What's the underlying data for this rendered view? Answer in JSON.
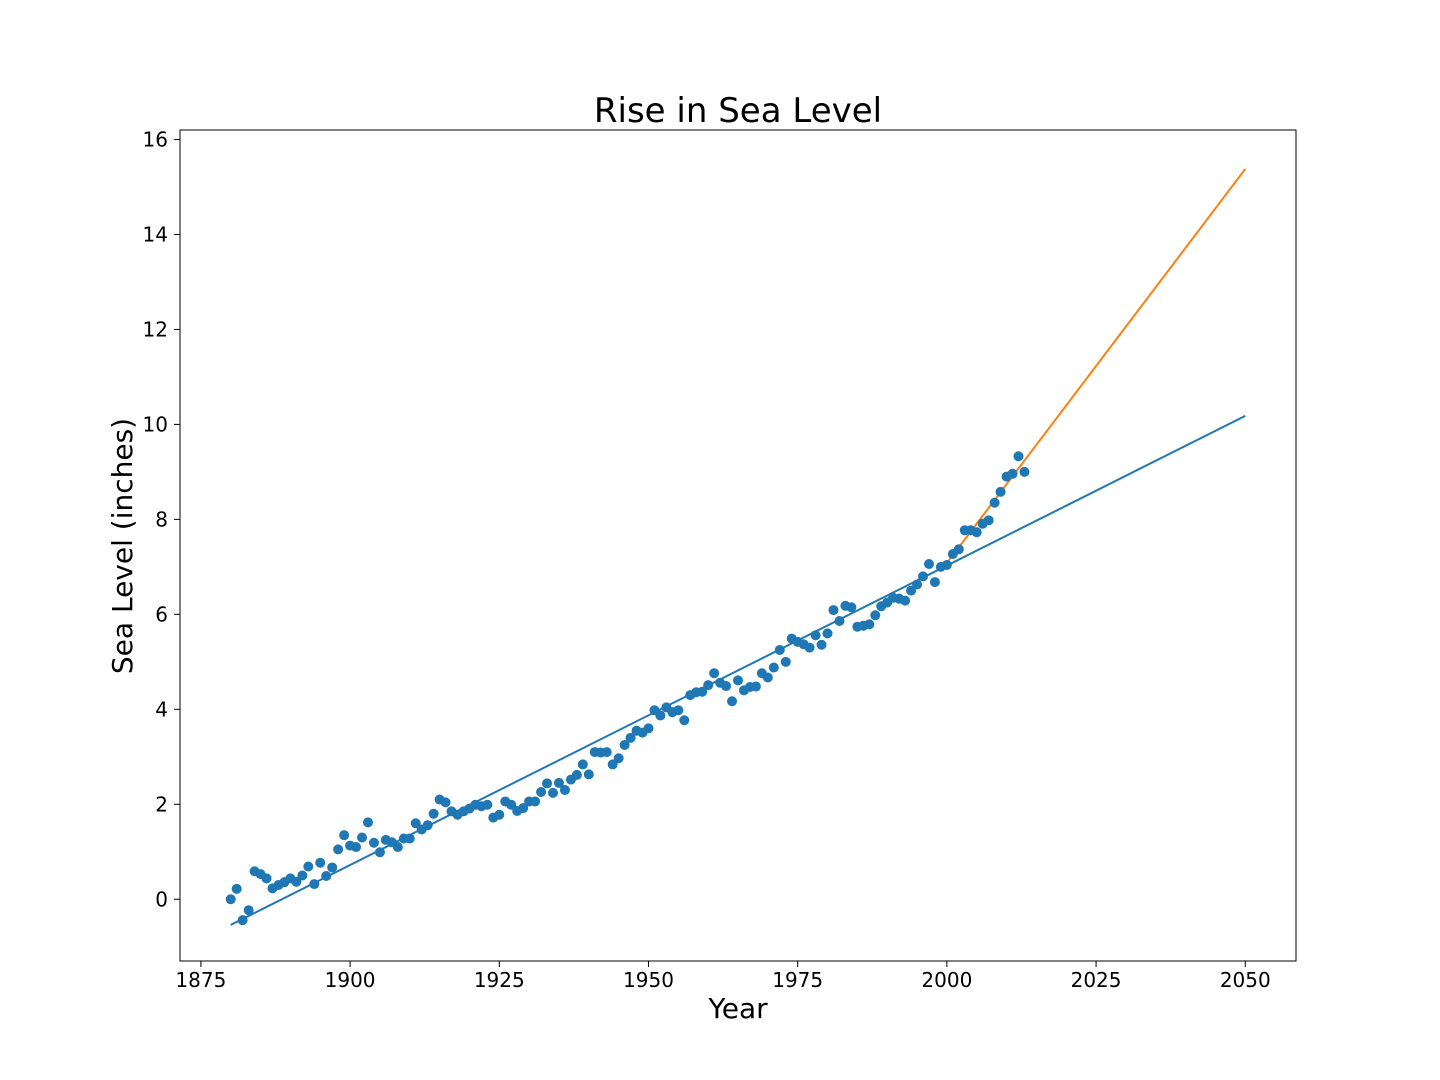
{
  "chart_data": {
    "type": "scatter",
    "title": "Rise in Sea Level",
    "xlabel": "Year",
    "ylabel": "Sea Level (inches)",
    "xlim": [
      1871.5,
      2058.5
    ],
    "ylim": [
      -1.3,
      16.2
    ],
    "xticks": [
      1875,
      1900,
      1925,
      1950,
      1975,
      2000,
      2025,
      2050
    ],
    "yticks": [
      0,
      2,
      4,
      6,
      8,
      10,
      12,
      14,
      16
    ],
    "grid": false,
    "legend": "none",
    "colors": {
      "points": "#1f77b4",
      "fit_all": "#1f77b4",
      "fit_recent": "#ff7f0e"
    },
    "series": [
      {
        "kind": "scatter",
        "x": [
          1880,
          1881,
          1882,
          1883,
          1884,
          1885,
          1886,
          1887,
          1888,
          1889,
          1890,
          1891,
          1892,
          1893,
          1894,
          1895,
          1896,
          1897,
          1898,
          1899,
          1900,
          1901,
          1902,
          1903,
          1904,
          1905,
          1906,
          1907,
          1908,
          1909,
          1910,
          1911,
          1912,
          1913,
          1914,
          1915,
          1916,
          1917,
          1918,
          1919,
          1920,
          1921,
          1922,
          1923,
          1924,
          1925,
          1926,
          1927,
          1928,
          1929,
          1930,
          1931,
          1932,
          1933,
          1934,
          1935,
          1936,
          1937,
          1938,
          1939,
          1940,
          1941,
          1942,
          1943,
          1944,
          1945,
          1946,
          1947,
          1948,
          1949,
          1950,
          1951,
          1952,
          1953,
          1954,
          1955,
          1956,
          1957,
          1958,
          1959,
          1960,
          1961,
          1962,
          1963,
          1964,
          1965,
          1966,
          1967,
          1968,
          1969,
          1970,
          1971,
          1972,
          1973,
          1974,
          1975,
          1976,
          1977,
          1978,
          1979,
          1980,
          1981,
          1982,
          1983,
          1984,
          1985,
          1986,
          1987,
          1988,
          1989,
          1990,
          1991,
          1992,
          1993,
          1994,
          1995,
          1996,
          1997,
          1998,
          1999,
          2000,
          2001,
          2002,
          2003,
          2004,
          2005,
          2006,
          2007,
          2008,
          2009,
          2010,
          2011,
          2012,
          2013
        ],
        "y": [
          0.0,
          0.22,
          -0.44,
          -0.23,
          0.59,
          0.53,
          0.44,
          0.23,
          0.3,
          0.36,
          0.44,
          0.37,
          0.5,
          0.69,
          0.32,
          0.77,
          0.49,
          0.67,
          1.05,
          1.35,
          1.13,
          1.1,
          1.3,
          1.62,
          1.19,
          0.99,
          1.25,
          1.2,
          1.1,
          1.28,
          1.28,
          1.6,
          1.47,
          1.56,
          1.8,
          2.1,
          2.04,
          1.85,
          1.78,
          1.85,
          1.91,
          1.99,
          1.96,
          1.99,
          1.72,
          1.78,
          2.06,
          1.99,
          1.86,
          1.92,
          2.06,
          2.06,
          2.26,
          2.44,
          2.24,
          2.45,
          2.3,
          2.52,
          2.62,
          2.84,
          2.63,
          3.1,
          3.09,
          3.1,
          2.84,
          2.97,
          3.25,
          3.4,
          3.55,
          3.51,
          3.6,
          3.98,
          3.87,
          4.04,
          3.94,
          3.98,
          3.77,
          4.3,
          4.36,
          4.37,
          4.51,
          4.76,
          4.56,
          4.49,
          4.17,
          4.61,
          4.4,
          4.47,
          4.48,
          4.76,
          4.67,
          4.88,
          5.25,
          5.0,
          5.49,
          5.42,
          5.37,
          5.3,
          5.56,
          5.36,
          5.6,
          6.09,
          5.86,
          6.18,
          6.15,
          5.74,
          5.76,
          5.79,
          5.98,
          6.17,
          6.25,
          6.35,
          6.33,
          6.29,
          6.5,
          6.63,
          6.8,
          7.06,
          6.68,
          7.0,
          7.04,
          7.27,
          7.37,
          7.77,
          7.77,
          7.73,
          7.91,
          7.98,
          8.35,
          8.58,
          8.9,
          8.96,
          9.33,
          9.0
        ]
      },
      {
        "kind": "line",
        "x": [
          1880,
          2050
        ],
        "y": [
          -0.54,
          10.18
        ]
      },
      {
        "kind": "line",
        "x": [
          2000,
          2050
        ],
        "y": [
          7.08,
          15.38
        ]
      }
    ]
  }
}
